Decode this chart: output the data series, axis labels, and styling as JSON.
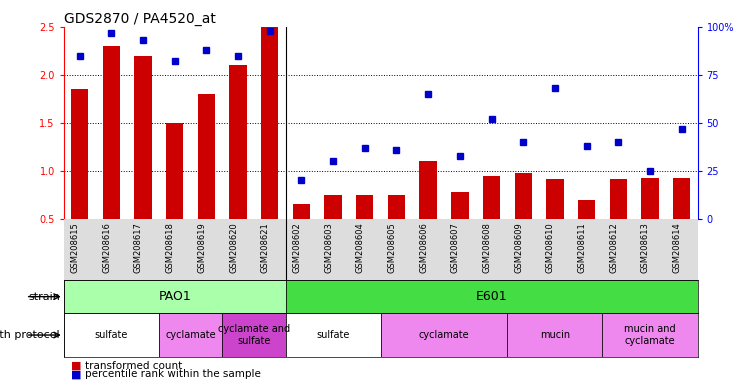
{
  "title": "GDS2870 / PA4520_at",
  "samples": [
    "GSM208615",
    "GSM208616",
    "GSM208617",
    "GSM208618",
    "GSM208619",
    "GSM208620",
    "GSM208621",
    "GSM208602",
    "GSM208603",
    "GSM208604",
    "GSM208605",
    "GSM208606",
    "GSM208607",
    "GSM208608",
    "GSM208609",
    "GSM208610",
    "GSM208611",
    "GSM208612",
    "GSM208613",
    "GSM208614"
  ],
  "bar_values": [
    1.85,
    2.3,
    2.2,
    1.5,
    1.8,
    2.1,
    2.5,
    0.65,
    0.75,
    0.75,
    0.75,
    1.1,
    0.78,
    0.95,
    0.98,
    0.92,
    0.7,
    0.92,
    0.93,
    0.93
  ],
  "dot_values": [
    85,
    97,
    93,
    82,
    88,
    85,
    98,
    20,
    30,
    37,
    36,
    65,
    33,
    52,
    40,
    68,
    38,
    40,
    25,
    47
  ],
  "ylim_left": [
    0.5,
    2.5
  ],
  "ylim_right": [
    0,
    100
  ],
  "yticks_left": [
    0.5,
    1.0,
    1.5,
    2.0,
    2.5
  ],
  "yticks_right": [
    0,
    25,
    50,
    75,
    100
  ],
  "bar_color": "#CC0000",
  "dot_color": "#0000CC",
  "bar_width": 0.55,
  "strain_pao1": {
    "label": "PAO1",
    "start": 0,
    "end": 7,
    "color": "#AAFFAA"
  },
  "strain_e601": {
    "label": "E601",
    "start": 7,
    "end": 20,
    "color": "#44DD44"
  },
  "growth_groups": [
    {
      "label": "sulfate",
      "start": 0,
      "end": 3,
      "color": "#FFFFFF"
    },
    {
      "label": "cyclamate",
      "start": 3,
      "end": 5,
      "color": "#EE88EE"
    },
    {
      "label": "cyclamate and\nsulfate",
      "start": 5,
      "end": 7,
      "color": "#CC44CC"
    },
    {
      "label": "sulfate",
      "start": 7,
      "end": 10,
      "color": "#FFFFFF"
    },
    {
      "label": "cyclamate",
      "start": 10,
      "end": 14,
      "color": "#EE88EE"
    },
    {
      "label": "mucin",
      "start": 14,
      "end": 17,
      "color": "#EE88EE"
    },
    {
      "label": "mucin and\ncyclamate",
      "start": 17,
      "end": 20,
      "color": "#EE88EE"
    }
  ],
  "background_color": "#FFFFFF",
  "tick_bg_color": "#DDDDDD",
  "title_fontsize": 10,
  "tick_fontsize": 7,
  "label_fontsize": 8,
  "annotation_fontsize": 8,
  "group_sep": 6.5
}
